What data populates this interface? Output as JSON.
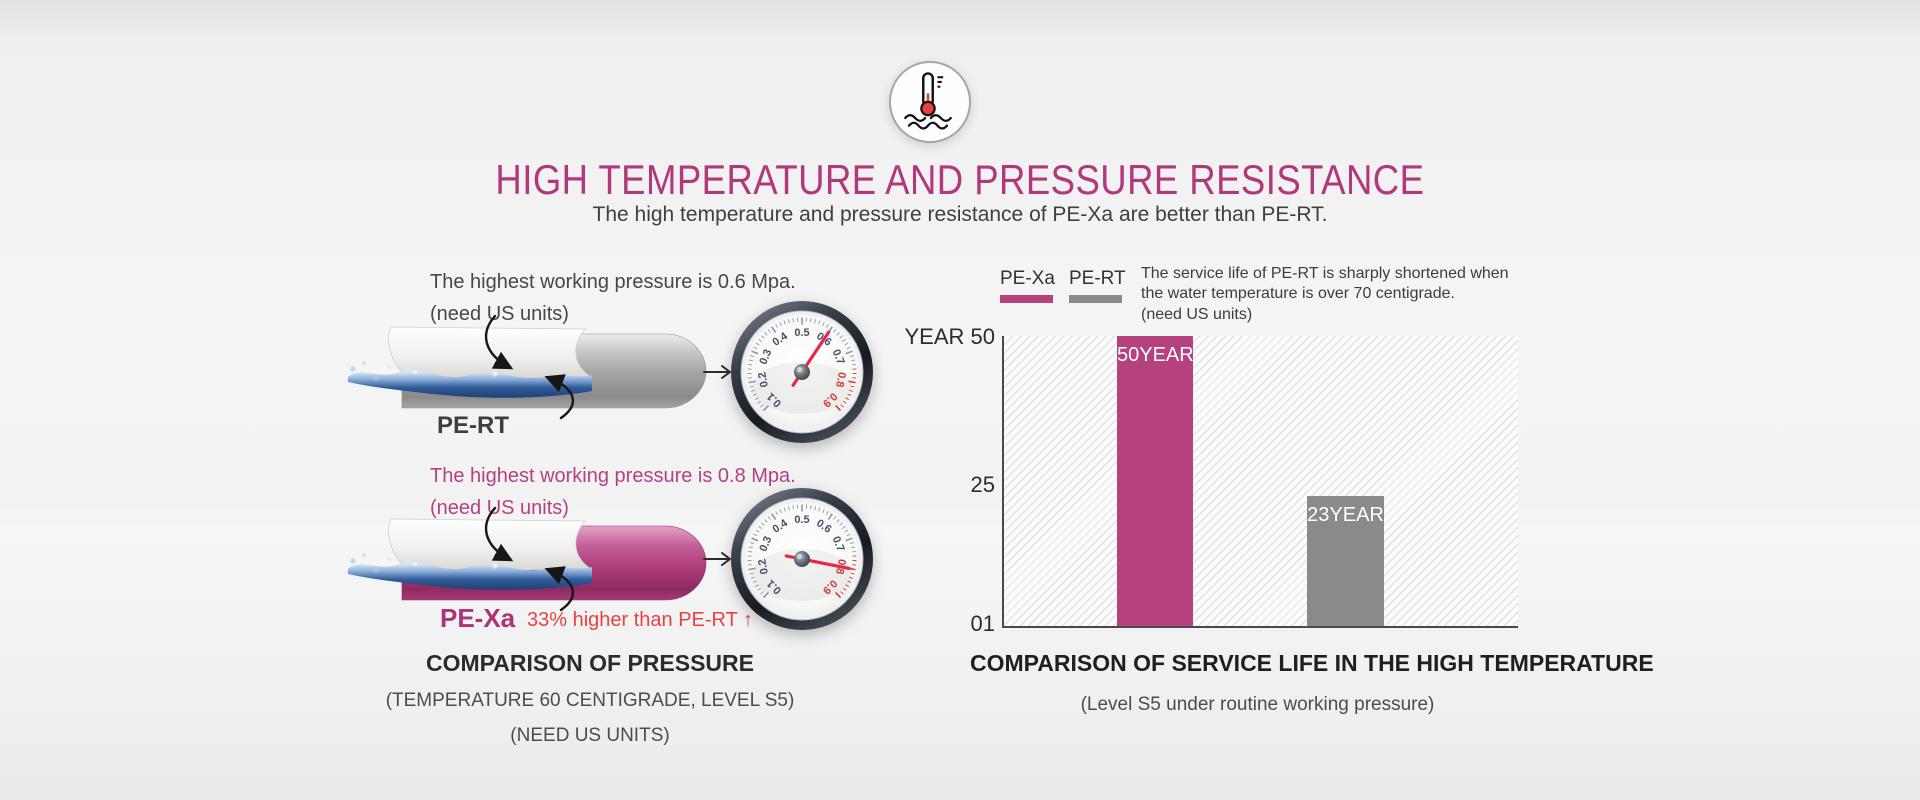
{
  "header": {
    "title": "HIGH TEMPERATURE AND PRESSURE RESISTANCE",
    "subtitle": "The high temperature and pressure resistance of PE-Xa are better than PE-RT."
  },
  "icon": {
    "name": "thermometer-in-water"
  },
  "pressure": {
    "pert": {
      "pressure_line": "The highest working pressure is 0.6 Mpa.",
      "units_line": "(need US units)",
      "label": "PE-RT",
      "gauge_value": 0.6
    },
    "pexa": {
      "pressure_line": "The highest working pressure is 0.8 Mpa.",
      "units_line": "(need US units)",
      "label": "PE-Xa",
      "comparison_note": "33% higher than PE-RT ↑",
      "gauge_value": 0.8
    },
    "caption_title": "COMPARISON OF PRESSURE",
    "caption_sub1": "(TEMPERATURE 60 CENTIGRADE, LEVEL S5)",
    "caption_sub2": "(NEED US UNITS)"
  },
  "gauge": {
    "tick_labels": [
      "0.1",
      "0.2",
      "0.3",
      "0.4",
      "0.5",
      "0.6",
      "0.7",
      "0.8",
      "0.9"
    ],
    "min": 0.1,
    "max": 0.9,
    "start_angle": 225,
    "sweep": 270,
    "red_from": 0.75,
    "red_label_from": 0.8,
    "needle_color": "#e5274a"
  },
  "chart_data": {
    "type": "bar",
    "title": "COMPARISON OF SERVICE LIFE IN THE HIGH TEMPERATURE",
    "subtitle": "(Level S5 under routine working pressure)",
    "note_lines": [
      "The service life of PE-RT is sharply shortened when",
      "the water temperature is over 70 centigrade.",
      "(need US units)"
    ],
    "legend": [
      {
        "label": "PE-Xa",
        "color": "#b5417f"
      },
      {
        "label": "PE-RT",
        "color": "#8a8a8a"
      }
    ],
    "legend_position": "top-left",
    "grid": "hatched",
    "y_axis": {
      "top_label": "YEAR 50",
      "mid_label": "25",
      "bottom_label": "01",
      "min": 1,
      "max": 50
    },
    "categories": [
      "PE-Xa",
      "PE-RT"
    ],
    "series": [
      {
        "name": "PE-Xa",
        "value": 50,
        "bar_label": "50YEAR",
        "color": "#b5417f"
      },
      {
        "name": "PE-RT",
        "value": 23,
        "bar_label": "23YEAR",
        "color": "#8a8a8a"
      }
    ]
  },
  "colors": {
    "title_magenta": "#b1397a",
    "accent_magenta": "#b5417f",
    "accent_red": "#e8433f",
    "bar_gray": "#8a8a8a",
    "text_dark": "#3a3a3a",
    "text_gray": "#555555"
  }
}
